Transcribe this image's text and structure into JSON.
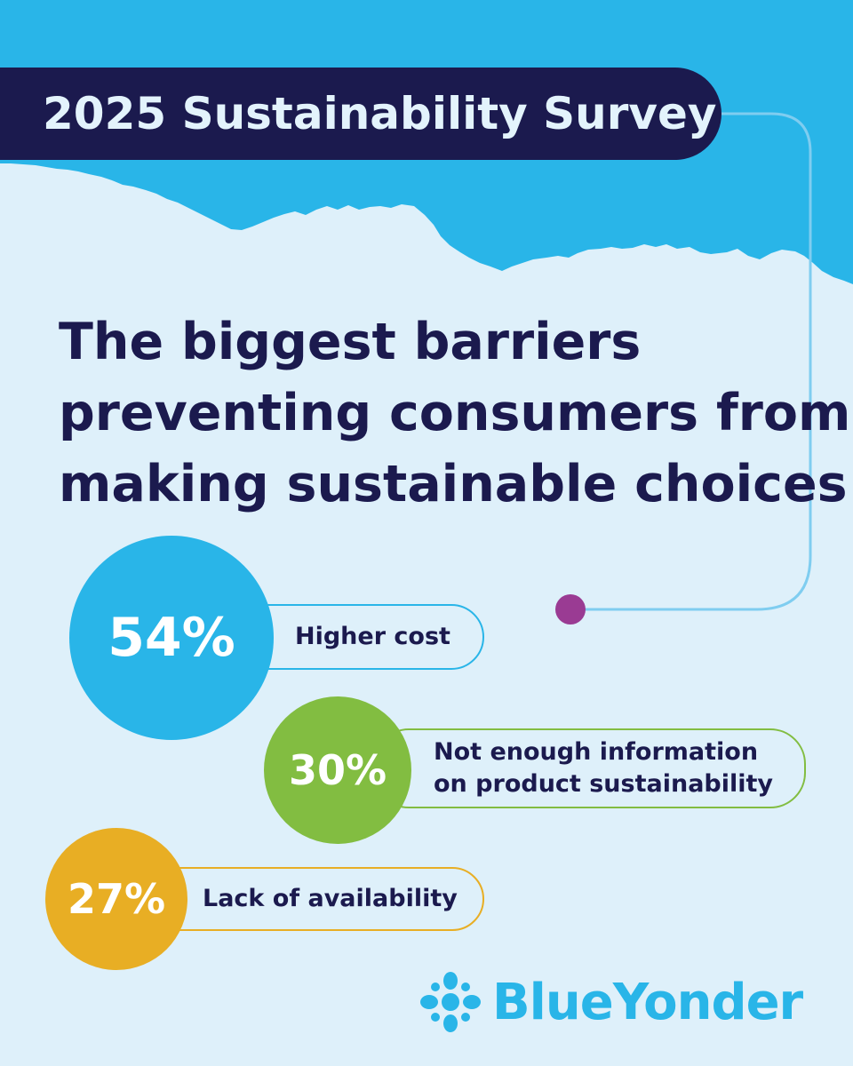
{
  "banner": {
    "title": "2025 Sustainability Survey"
  },
  "headline": {
    "lines": [
      "The biggest barriers",
      "preventing consumers from",
      "making sustainable choices"
    ]
  },
  "stats": [
    {
      "percent": "54%",
      "label": "Higher cost",
      "color": "#29b5e8"
    },
    {
      "percent": "30%",
      "label_lines": [
        "Not enough information",
        "on product sustainability"
      ],
      "color": "#82bd41"
    },
    {
      "percent": "27%",
      "label": "Lack of availability",
      "color": "#e8ae24"
    }
  ],
  "brand": {
    "name": "BlueYonder"
  },
  "colors": {
    "background": "#def0fa",
    "sky": "#29b5e8",
    "banner": "#1b1a4e",
    "connector": "#7fcdf0",
    "connector_dot": "#9a3b93",
    "text": "#1b1a4e"
  }
}
